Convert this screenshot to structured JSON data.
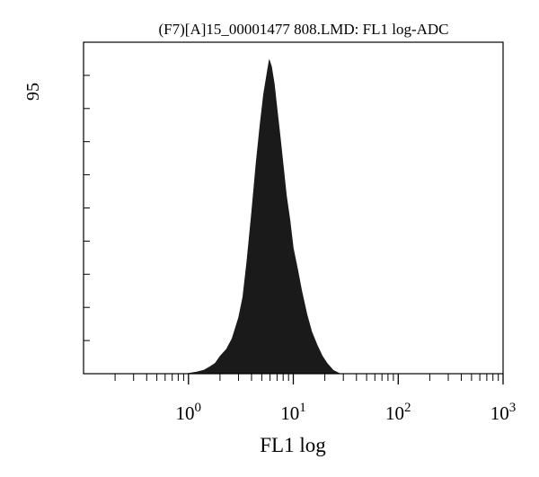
{
  "chart_data": {
    "type": "area",
    "title": "(F7)[A]15_00001477 808.LMD: FL1 log-ADC",
    "xlabel": "FL1 log",
    "ylabel_max_label": "95",
    "x_scale": "log",
    "xlim": [
      0.1,
      1000
    ],
    "ylim": [
      0,
      95
    ],
    "x_ticks": [
      {
        "value": 1,
        "base": "10",
        "exp": "0"
      },
      {
        "value": 10,
        "base": "10",
        "exp": "1"
      },
      {
        "value": 100,
        "base": "10",
        "exp": "2"
      },
      {
        "value": 1000,
        "base": "10",
        "exp": "3"
      }
    ],
    "y_minor_tick_count": 10,
    "grid": false,
    "series": [
      {
        "color": "#1a1a1a",
        "x": [
          0.95,
          1.2,
          1.4,
          1.6,
          1.8,
          2.0,
          2.3,
          2.6,
          3.0,
          3.3,
          3.6,
          4.0,
          4.4,
          4.8,
          5.2,
          5.6,
          5.9,
          6.2,
          6.6,
          7.0,
          7.5,
          8.0,
          8.6,
          9.3,
          10.0,
          11.0,
          12.0,
          13.5,
          15.0,
          17.0,
          19.0,
          21.0,
          24.0,
          28.0
        ],
        "y": [
          0,
          0.5,
          1,
          2,
          3,
          5,
          7,
          10,
          16,
          22,
          32,
          46,
          60,
          71,
          80,
          86,
          90,
          88,
          83,
          76,
          68,
          60,
          51,
          44,
          36,
          30,
          24,
          17,
          12,
          8,
          5,
          3,
          1,
          0
        ]
      }
    ]
  }
}
